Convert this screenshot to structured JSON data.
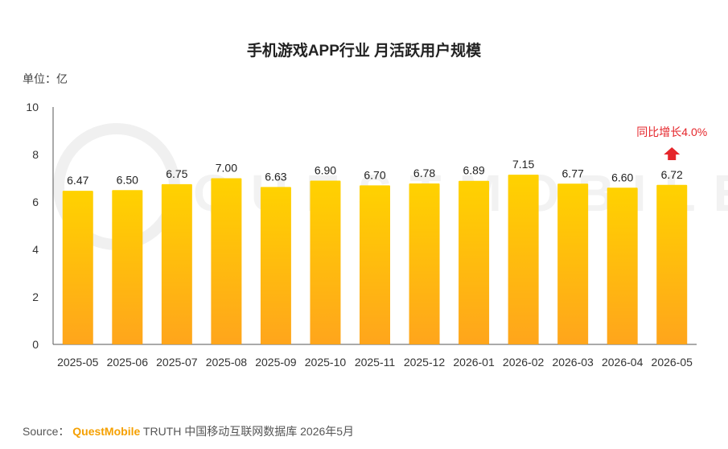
{
  "title": "手机游戏APP行业 月活跃用户规模",
  "unit_label": "单位：亿",
  "source": {
    "prefix": "Source：",
    "brand": "QuestMobile",
    "suffix": "TRUTH 中国移动互联网数据库 2026年5月"
  },
  "watermark": "QUESTMOBILE",
  "annotation": {
    "text": "同比增长4.0%",
    "color": "#e5262b",
    "arrow": "up-arrow-icon"
  },
  "colors": {
    "bar_top": "#ffd200",
    "bar_bottom": "#ffa51c",
    "axis": "#555555"
  },
  "chart_data": {
    "type": "bar",
    "title": "手机游戏APP行业 月活跃用户规模",
    "ylabel": "单位：亿",
    "ylim": [
      0,
      10
    ],
    "yticks": [
      0,
      2,
      4,
      6,
      8,
      10
    ],
    "categories": [
      "2025-05",
      "2025-06",
      "2025-07",
      "2025-08",
      "2025-09",
      "2025-10",
      "2025-11",
      "2025-12",
      "2026-01",
      "2026-02",
      "2026-03",
      "2026-04",
      "2026-05"
    ],
    "values": [
      6.47,
      6.5,
      6.75,
      7.0,
      6.63,
      6.9,
      6.7,
      6.78,
      6.89,
      7.15,
      6.77,
      6.6,
      6.72
    ],
    "labels": [
      "6.47",
      "6.50",
      "6.75",
      "7.00",
      "6.63",
      "6.90",
      "6.70",
      "6.78",
      "6.89",
      "7.15",
      "6.77",
      "6.60",
      "6.72"
    ],
    "grid": false,
    "legend": "none"
  }
}
